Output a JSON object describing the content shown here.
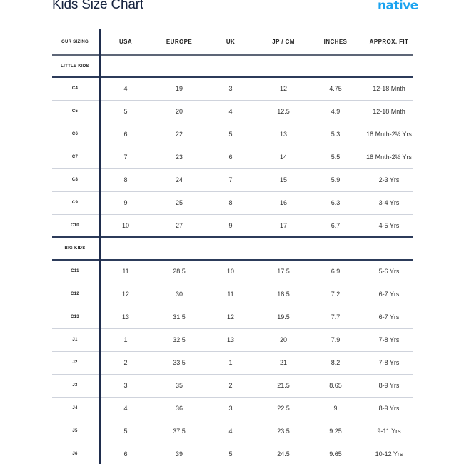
{
  "title": "Kids Size Chart",
  "logo": "native",
  "colors": {
    "accent": "#1aa3f0",
    "navy": "#14213d",
    "divider": "#cfd3dc"
  },
  "headers": [
    "OUR SIZING",
    "USA",
    "EUROPE",
    "UK",
    "JP / CM",
    "INCHES",
    "APPROX. FIT"
  ],
  "sections": [
    {
      "label": "LITTLE KIDS",
      "rows": [
        [
          "C4",
          "4",
          "19",
          "3",
          "12",
          "4.75",
          "12-18 Mnth"
        ],
        [
          "C5",
          "5",
          "20",
          "4",
          "12.5",
          "4.9",
          "12-18 Mnth"
        ],
        [
          "C6",
          "6",
          "22",
          "5",
          "13",
          "5.3",
          "18 Mnth-2½ Yrs"
        ],
        [
          "C7",
          "7",
          "23",
          "6",
          "14",
          "5.5",
          "18 Mnth-2½ Yrs"
        ],
        [
          "C8",
          "8",
          "24",
          "7",
          "15",
          "5.9",
          "2-3 Yrs"
        ],
        [
          "C9",
          "9",
          "25",
          "8",
          "16",
          "6.3",
          "3-4 Yrs"
        ],
        [
          "C10",
          "10",
          "27",
          "9",
          "17",
          "6.7",
          "4-5 Yrs"
        ]
      ]
    },
    {
      "label": "BIG KIDS",
      "rows": [
        [
          "C11",
          "11",
          "28.5",
          "10",
          "17.5",
          "6.9",
          "5-6 Yrs"
        ],
        [
          "C12",
          "12",
          "30",
          "11",
          "18.5",
          "7.2",
          "6-7 Yrs"
        ],
        [
          "C13",
          "13",
          "31.5",
          "12",
          "19.5",
          "7.7",
          "6-7 Yrs"
        ],
        [
          "J1",
          "1",
          "32.5",
          "13",
          "20",
          "7.9",
          "7-8 Yrs"
        ],
        [
          "J2",
          "2",
          "33.5",
          "1",
          "21",
          "8.2",
          "7-8 Yrs"
        ],
        [
          "J3",
          "3",
          "35",
          "2",
          "21.5",
          "8.65",
          "8-9 Yrs"
        ],
        [
          "J4",
          "4",
          "36",
          "3",
          "22.5",
          "9",
          "8-9 Yrs"
        ],
        [
          "J5",
          "5",
          "37.5",
          "4",
          "23.5",
          "9.25",
          "9-11 Yrs"
        ],
        [
          "J6",
          "6",
          "39",
          "5",
          "24.5",
          "9.65",
          "10-12 Yrs"
        ]
      ]
    }
  ]
}
